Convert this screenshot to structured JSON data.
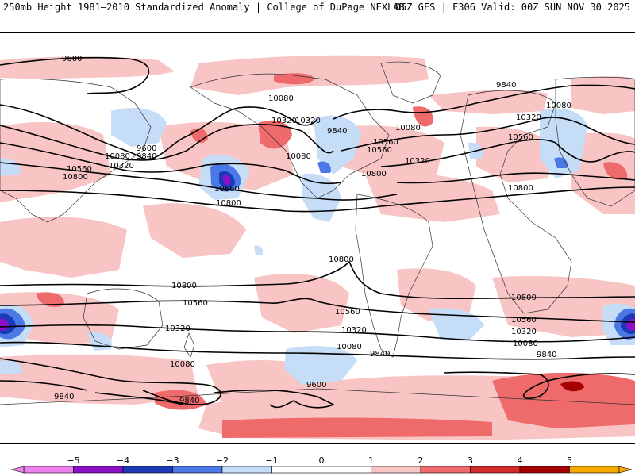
{
  "header": {
    "title_left": "250mb Height 1981–2010 Standardized Anomaly | College of DuPage NEXLAB",
    "title_right": "06Z GFS | F306 Valid: 00Z SUN NOV 30 2025"
  },
  "colors": {
    "neg5": "#ee82ee",
    "neg4": "#8b10c8",
    "neg3": "#1a3ab8",
    "neg2": "#4a78e6",
    "neg1": "#c6ddf7",
    "zero": "#ffffff",
    "pos1": "#f8c4c4",
    "pos2": "#ef6a6a",
    "pos3": "#d42a2a",
    "pos4": "#a50000",
    "pos5": "#f5a800"
  },
  "contours": {
    "labels": [
      {
        "text": "9600"
      },
      {
        "text": "9840"
      },
      {
        "text": "10080"
      },
      {
        "text": "10320"
      },
      {
        "text": "10080"
      },
      {
        "text": "10320"
      },
      {
        "text": "9840"
      },
      {
        "text": "10560"
      },
      {
        "text": "10800"
      },
      {
        "text": "9600"
      },
      {
        "text": "9840"
      },
      {
        "text": "10080"
      },
      {
        "text": "10320"
      },
      {
        "text": "10560"
      },
      {
        "text": "10800"
      },
      {
        "text": "10560"
      },
      {
        "text": "10800"
      },
      {
        "text": "10080"
      },
      {
        "text": "10560"
      },
      {
        "text": "10320"
      },
      {
        "text": "10080"
      },
      {
        "text": "10320"
      },
      {
        "text": "10560"
      },
      {
        "text": "10800"
      },
      {
        "text": "10800"
      },
      {
        "text": "10800"
      },
      {
        "text": "10560"
      },
      {
        "text": "10320"
      },
      {
        "text": "10080"
      },
      {
        "text": "9840"
      },
      {
        "text": "10560"
      },
      {
        "text": "10320"
      },
      {
        "text": "10080"
      },
      {
        "text": "9840"
      },
      {
        "text": "10800"
      },
      {
        "text": "10560"
      },
      {
        "text": "10320"
      },
      {
        "text": "10080"
      },
      {
        "text": "9840"
      },
      {
        "text": "9600"
      },
      {
        "text": "9840"
      },
      {
        "text": "9840"
      }
    ]
  },
  "legend": {
    "ticks": [
      "−5",
      "−4",
      "−3",
      "−2",
      "−1",
      "0",
      "1",
      "2",
      "3",
      "4",
      "5"
    ]
  }
}
